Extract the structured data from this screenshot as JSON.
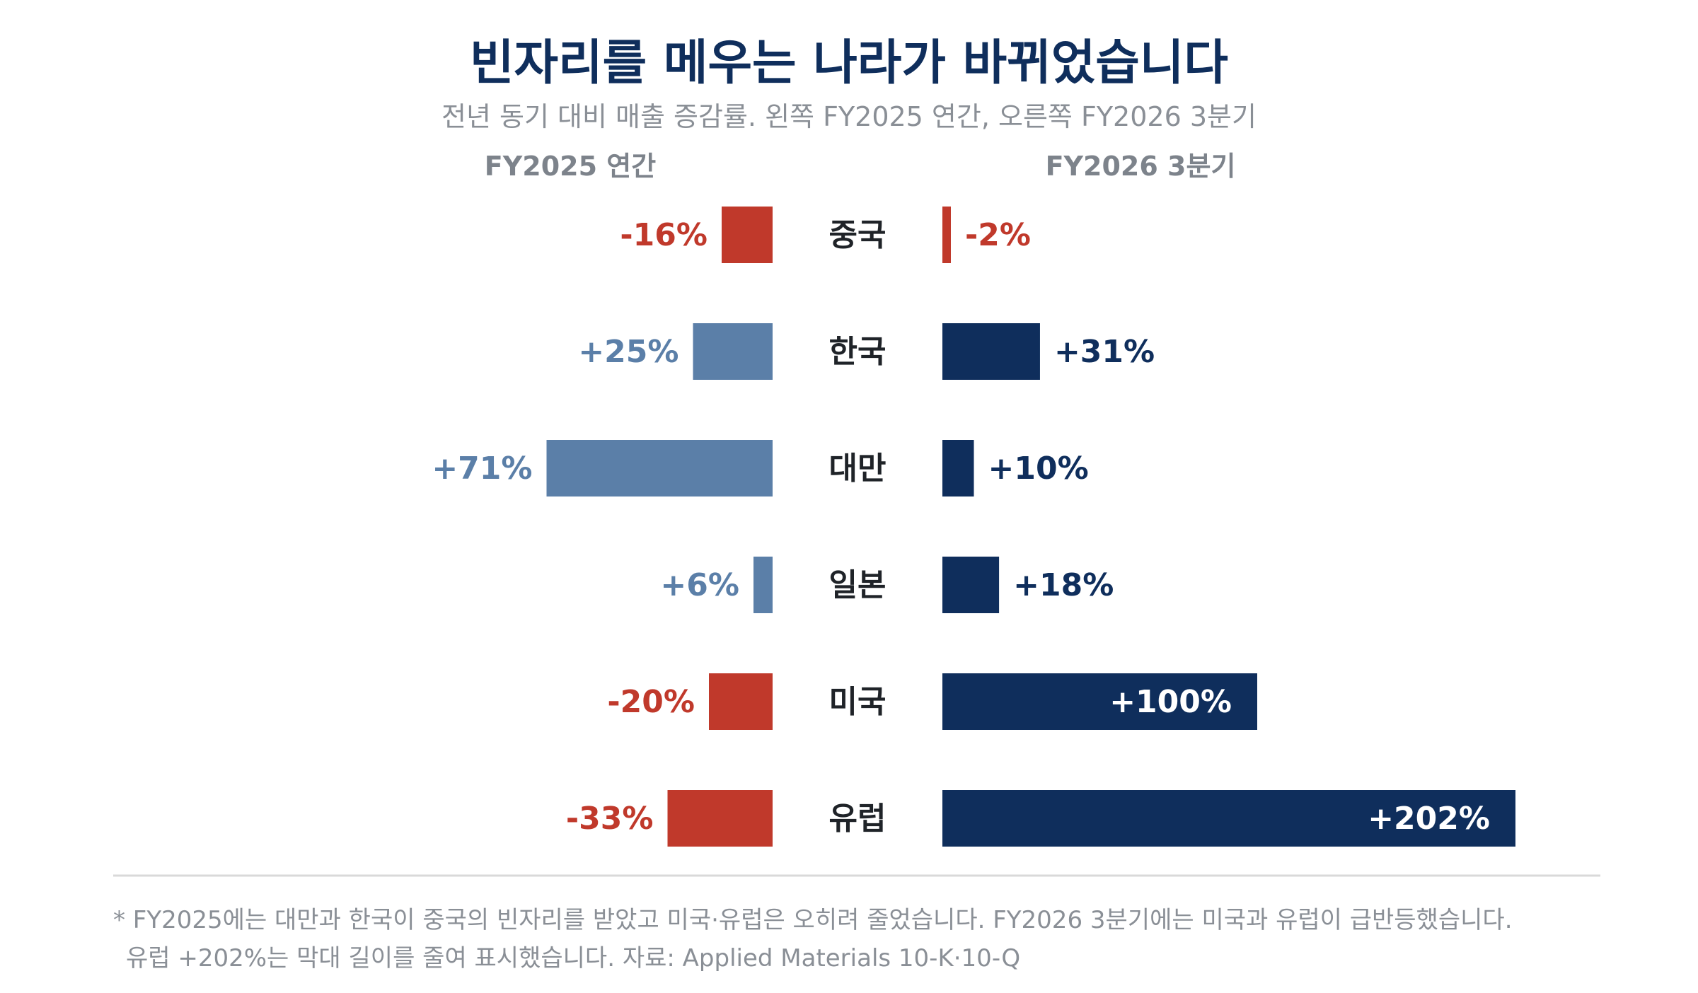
{
  "title": "빈자리를 메우는 나라가 바뀌었습니다",
  "subtitle": "전년 동기 대비 매출 증감률. 왼쪽 FY2025 연간, 오른쪽 FY2026 3분기",
  "left_header": "FY2025 연간",
  "right_header": "FY2026 3분기",
  "footnote": [
    "* FY2025에는 대만과 한국이 중국의 빈자리를 받았고 미국·유럽은 오히려 줄었습니다. FY2026 3분기에는 미국과 유럽이 급반등했습니다.",
    "유럽 +202%는 막대 길이를 줄여 표시했습니다. 자료: Applied Materials 10-K·10-Q"
  ],
  "colors": {
    "negative": "#c0392b",
    "left_positive": "#5b7fa8",
    "right_positive": "#0f2e5c",
    "title": "#0f2e5c"
  },
  "chart_data": {
    "type": "bar",
    "orientation": "horizontal",
    "layout": "back-to-back",
    "categories": [
      "중국",
      "한국",
      "대만",
      "일본",
      "미국",
      "유럽"
    ],
    "series": [
      {
        "name": "FY2025 연간",
        "values": [
          -16,
          25,
          71,
          6,
          -20,
          -33
        ],
        "labels": [
          "-16%",
          "+25%",
          "+71%",
          "+6%",
          "-20%",
          "-33%"
        ]
      },
      {
        "name": "FY2026 3분기",
        "values": [
          -2,
          31,
          10,
          18,
          100,
          202
        ],
        "labels": [
          "-2%",
          "+31%",
          "+10%",
          "+18%",
          "+100%",
          "+202%"
        ],
        "note": "유럽 +202%는 막대 길이를 줄여 표시"
      }
    ],
    "unit": "%",
    "grid": false,
    "legend": "none"
  }
}
